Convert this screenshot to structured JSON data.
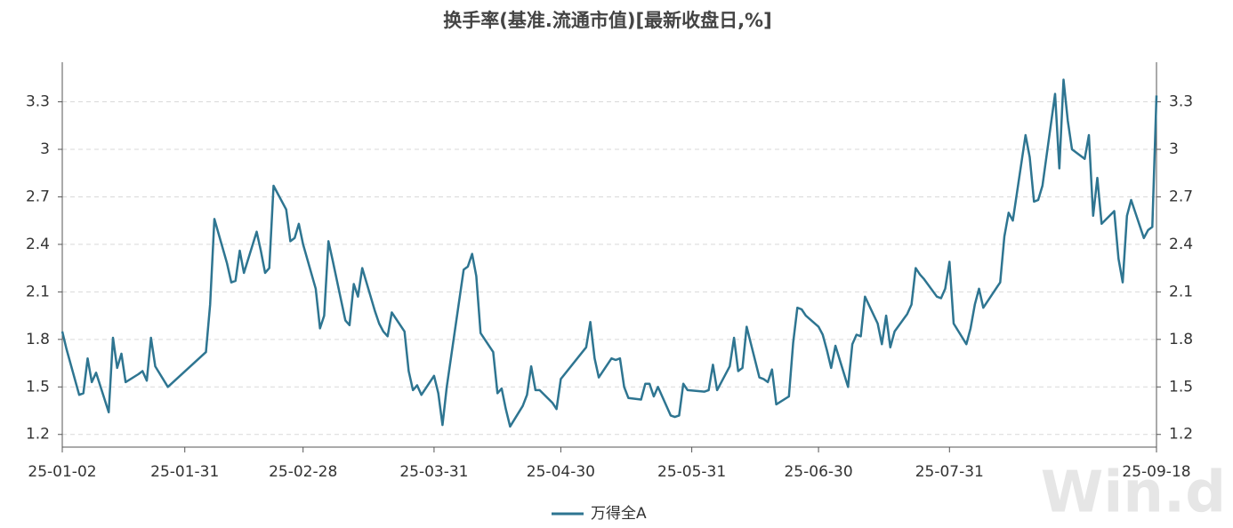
{
  "chart_data": {
    "type": "line",
    "title": "换手率(基准.流通市值)[最新收盘日,%]",
    "x": [
      "25-01-02",
      "25-01-03",
      "25-01-06",
      "25-01-07",
      "25-01-08",
      "25-01-09",
      "25-01-10",
      "25-01-13",
      "25-01-14",
      "25-01-15",
      "25-01-16",
      "25-01-17",
      "25-01-20",
      "25-01-21",
      "25-01-22",
      "25-01-23",
      "25-01-24",
      "25-01-27",
      "25-02-05",
      "25-02-06",
      "25-02-07",
      "25-02-10",
      "25-02-11",
      "25-02-12",
      "25-02-13",
      "25-02-14",
      "25-02-17",
      "25-02-18",
      "25-02-19",
      "25-02-20",
      "25-02-21",
      "25-02-24",
      "25-02-25",
      "25-02-26",
      "25-02-27",
      "25-02-28",
      "25-03-03",
      "25-03-04",
      "25-03-05",
      "25-03-06",
      "25-03-07",
      "25-03-10",
      "25-03-11",
      "25-03-12",
      "25-03-13",
      "25-03-14",
      "25-03-17",
      "25-03-18",
      "25-03-19",
      "25-03-20",
      "25-03-21",
      "25-03-24",
      "25-03-25",
      "25-03-26",
      "25-03-27",
      "25-03-28",
      "25-03-31",
      "25-04-01",
      "25-04-02",
      "25-04-03",
      "25-04-07",
      "25-04-08",
      "25-04-09",
      "25-04-10",
      "25-04-11",
      "25-04-14",
      "25-04-15",
      "25-04-16",
      "25-04-17",
      "25-04-18",
      "25-04-21",
      "25-04-22",
      "25-04-23",
      "25-04-24",
      "25-04-25",
      "25-04-28",
      "25-04-29",
      "25-04-30",
      "25-05-06",
      "25-05-07",
      "25-05-08",
      "25-05-09",
      "25-05-12",
      "25-05-13",
      "25-05-14",
      "25-05-15",
      "25-05-16",
      "25-05-19",
      "25-05-20",
      "25-05-21",
      "25-05-22",
      "25-05-23",
      "25-05-26",
      "25-05-27",
      "25-05-28",
      "25-05-29",
      "25-05-30",
      "25-06-03",
      "25-06-04",
      "25-06-05",
      "25-06-06",
      "25-06-09",
      "25-06-10",
      "25-06-11",
      "25-06-12",
      "25-06-13",
      "25-06-16",
      "25-06-17",
      "25-06-18",
      "25-06-19",
      "25-06-20",
      "25-06-23",
      "25-06-24",
      "25-06-25",
      "25-06-26",
      "25-06-27",
      "25-06-30",
      "25-07-01",
      "25-07-02",
      "25-07-03",
      "25-07-04",
      "25-07-07",
      "25-07-08",
      "25-07-09",
      "25-07-10",
      "25-07-11",
      "25-07-14",
      "25-07-15",
      "25-07-16",
      "25-07-17",
      "25-07-18",
      "25-07-21",
      "25-07-22",
      "25-07-23",
      "25-07-24",
      "25-07-25",
      "25-07-28",
      "25-07-29",
      "25-07-30",
      "25-07-31",
      "25-08-01",
      "25-08-04",
      "25-08-05",
      "25-08-06",
      "25-08-07",
      "25-08-08",
      "25-08-11",
      "25-08-12",
      "25-08-13",
      "25-08-14",
      "25-08-15",
      "25-08-18",
      "25-08-19",
      "25-08-20",
      "25-08-21",
      "25-08-22",
      "25-08-25",
      "25-08-26",
      "25-08-27",
      "25-08-28",
      "25-08-29",
      "25-09-01",
      "25-09-02",
      "25-09-03",
      "25-09-04",
      "25-09-05",
      "25-09-08",
      "25-09-09",
      "25-09-10",
      "25-09-11",
      "25-09-12",
      "25-09-15",
      "25-09-16",
      "25-09-17",
      "25-09-18"
    ],
    "series": [
      {
        "name": "万得全A",
        "color": "#2e7591",
        "values": [
          1.85,
          1.74,
          1.45,
          1.46,
          1.68,
          1.53,
          1.59,
          1.34,
          1.81,
          1.62,
          1.71,
          1.53,
          1.58,
          1.6,
          1.54,
          1.81,
          1.63,
          1.5,
          1.72,
          2.02,
          2.56,
          2.28,
          2.16,
          2.17,
          2.36,
          2.22,
          2.48,
          2.36,
          2.22,
          2.25,
          2.77,
          2.62,
          2.42,
          2.44,
          2.53,
          2.4,
          2.12,
          1.87,
          1.95,
          2.42,
          2.3,
          1.92,
          1.89,
          2.15,
          2.07,
          2.25,
          1.98,
          1.9,
          1.85,
          1.82,
          1.97,
          1.85,
          1.6,
          1.48,
          1.51,
          1.45,
          1.57,
          1.46,
          1.26,
          1.5,
          2.24,
          2.26,
          2.34,
          2.2,
          1.84,
          1.72,
          1.46,
          1.49,
          1.36,
          1.25,
          1.38,
          1.45,
          1.63,
          1.48,
          1.48,
          1.4,
          1.36,
          1.55,
          1.75,
          1.91,
          1.68,
          1.56,
          1.68,
          1.67,
          1.68,
          1.5,
          1.43,
          1.42,
          1.52,
          1.52,
          1.44,
          1.5,
          1.32,
          1.31,
          1.32,
          1.52,
          1.48,
          1.47,
          1.48,
          1.64,
          1.48,
          1.63,
          1.81,
          1.6,
          1.62,
          1.88,
          1.56,
          1.55,
          1.53,
          1.61,
          1.39,
          1.44,
          1.78,
          2.0,
          1.99,
          1.95,
          1.88,
          1.83,
          1.73,
          1.62,
          1.76,
          1.5,
          1.77,
          1.83,
          1.82,
          2.07,
          1.9,
          1.77,
          1.95,
          1.75,
          1.85,
          1.96,
          2.02,
          2.25,
          2.21,
          2.18,
          2.07,
          2.06,
          2.12,
          2.29,
          1.9,
          1.77,
          1.87,
          2.02,
          2.12,
          2.0,
          2.12,
          2.16,
          2.45,
          2.6,
          2.55,
          3.09,
          2.95,
          2.67,
          2.68,
          2.77,
          3.35,
          2.88,
          3.44,
          3.18,
          3.0,
          2.94,
          3.09,
          2.58,
          2.82,
          2.53,
          2.61,
          2.31,
          2.16,
          2.58,
          2.68,
          2.44,
          2.49,
          2.51,
          3.34
        ]
      }
    ],
    "xlim": [
      "25-01-02",
      "25-09-18"
    ],
    "xticks": [
      "25-01-02",
      "25-01-31",
      "25-02-28",
      "25-03-31",
      "25-04-30",
      "25-05-31",
      "25-06-30",
      "25-07-31",
      "25-09-18"
    ],
    "ylim": [
      1.12,
      3.55
    ],
    "yticks": [
      1.2,
      1.5,
      1.8,
      2.1,
      2.4,
      2.7,
      3,
      3.3
    ],
    "grid": true,
    "legend": "bottom",
    "watermark": "Win.d"
  }
}
